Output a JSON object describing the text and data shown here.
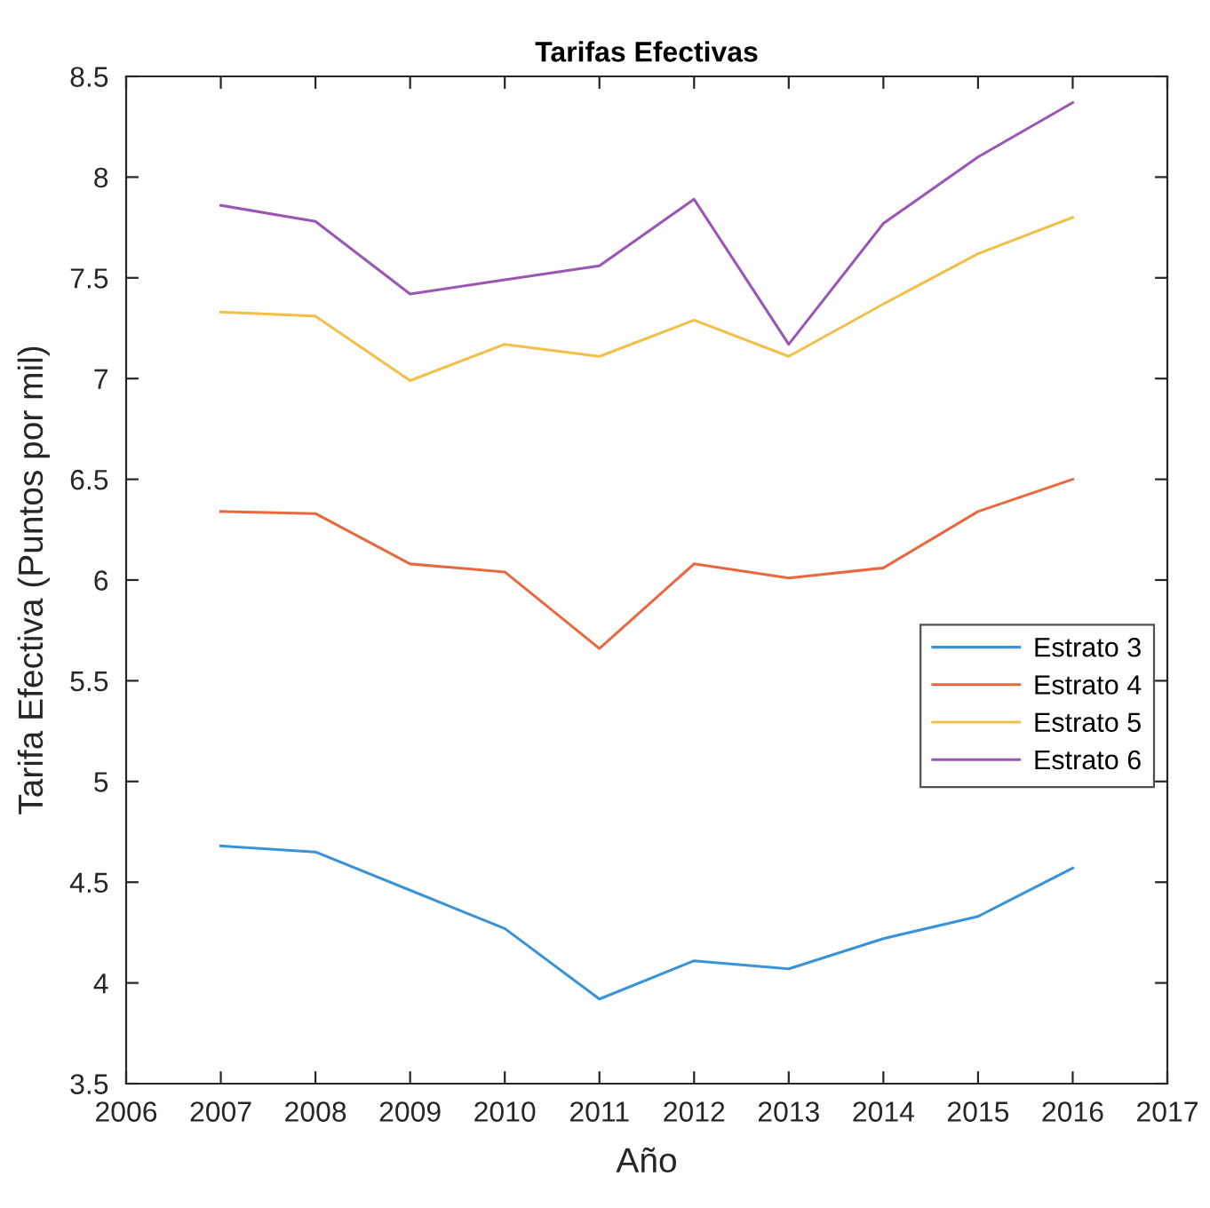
{
  "chart_data": {
    "type": "line",
    "title": "Tarifas Efectivas",
    "xlabel": "Año",
    "ylabel": "Tarifa Efectiva (Puntos por mil)",
    "x": [
      2007,
      2008,
      2009,
      2010,
      2011,
      2012,
      2013,
      2014,
      2015,
      2016
    ],
    "series": [
      {
        "name": "Estrato 3",
        "color": "#3a93d6",
        "values": [
          4.68,
          4.65,
          4.46,
          4.27,
          3.92,
          4.11,
          4.07,
          4.22,
          4.33,
          4.57
        ]
      },
      {
        "name": "Estrato 4",
        "color": "#e8693f",
        "values": [
          6.34,
          6.33,
          6.08,
          6.04,
          5.66,
          6.08,
          6.01,
          6.06,
          6.34,
          6.5
        ]
      },
      {
        "name": "Estrato 5",
        "color": "#f2c04a",
        "values": [
          7.33,
          7.31,
          6.99,
          7.17,
          7.11,
          7.29,
          7.11,
          7.37,
          7.62,
          7.8
        ]
      },
      {
        "name": "Estrato 6",
        "color": "#9b55b5",
        "values": [
          7.86,
          7.78,
          7.42,
          7.49,
          7.56,
          7.89,
          7.17,
          7.77,
          8.1,
          8.37
        ]
      }
    ],
    "xlim": [
      2006,
      2017
    ],
    "xticks": [
      2006,
      2007,
      2008,
      2009,
      2010,
      2011,
      2012,
      2013,
      2014,
      2015,
      2016,
      2017
    ],
    "ylim": [
      3.5,
      8.5
    ],
    "yticks": [
      3.5,
      4,
      4.5,
      5,
      5.5,
      6,
      6.5,
      7,
      7.5,
      8,
      8.5
    ],
    "grid": false,
    "legend": "right",
    "marker": "none",
    "line_style": "solid"
  }
}
